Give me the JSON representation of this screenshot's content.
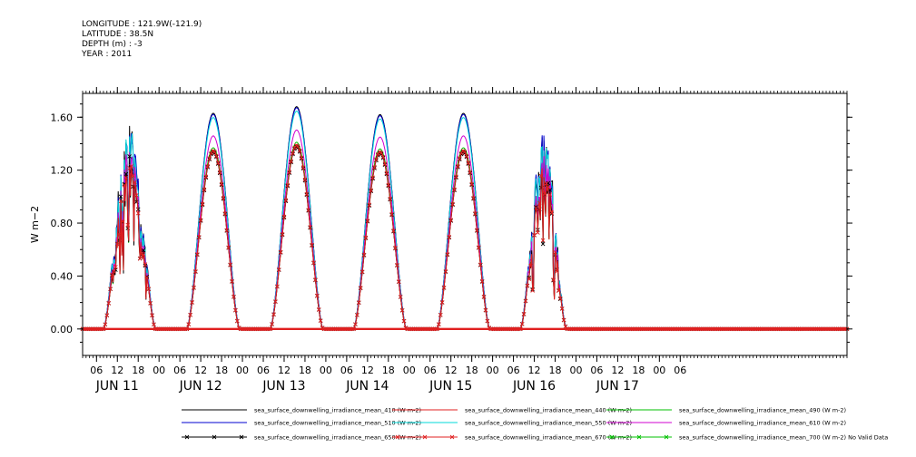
{
  "header": {
    "longitude": "LONGITUDE : 121.9W(-121.9)",
    "latitude": "LATITUDE : 38.5N",
    "depth": "DEPTH (m) : -3",
    "year": "YEAR : 2011"
  },
  "chart_data": {
    "type": "line",
    "title": "",
    "xlabel": "",
    "ylabel": "W m-2",
    "ylim": [
      -0.2,
      1.78
    ],
    "yticks": [
      0.0,
      0.4,
      0.8,
      1.2,
      1.6
    ],
    "ytick_labels": [
      "0.00",
      "0.40",
      "0.80",
      "1.20",
      "1.60"
    ],
    "xlim_hours": [
      2,
      222
    ],
    "x_tick_labels": [
      "06",
      "12",
      "18",
      "00",
      "06",
      "12",
      "18",
      "00",
      "06",
      "12",
      "18",
      "00",
      "06",
      "12",
      "18",
      "00",
      "06",
      "12",
      "18",
      "00",
      "06",
      "12",
      "18",
      "00",
      "06",
      "12",
      "18",
      "00",
      "06"
    ],
    "day_labels": [
      "JUN 11",
      "JUN 12",
      "JUN 13",
      "JUN 14",
      "JUN 15",
      "JUN 16",
      "JUN 17"
    ],
    "grid": false,
    "legend_position": "bottom",
    "peaks_410": [
      1.55,
      1.63,
      1.68,
      1.62,
      1.63,
      1.45
    ],
    "series": [
      {
        "name": "sea_surface_downwelling_irradiance_mean_410 (W m-2)",
        "color": "#000000",
        "scale": 1.0,
        "marker": false
      },
      {
        "name": "sea_surface_downwelling_irradiance_mean_440 (W m-2)",
        "color": "#e02020",
        "scale": 0.83,
        "marker": false
      },
      {
        "name": "sea_surface_downwelling_irradiance_mean_490 (W m-2)",
        "color": "#00c000",
        "scale": 0.84,
        "marker": false
      },
      {
        "name": "sea_surface_downwelling_irradiance_mean_510 (W m-2)",
        "color": "#0000d0",
        "scale": 0.995,
        "marker": false
      },
      {
        "name": "sea_surface_downwelling_irradiance_mean_550 (W m-2)",
        "color": "#00d8d8",
        "scale": 0.98,
        "marker": false
      },
      {
        "name": "sea_surface_downwelling_irradiance_mean_610 (W m-2)",
        "color": "#d000d0",
        "scale": 0.895,
        "marker": false
      },
      {
        "name": "sea_surface_downwelling_irradiance_mean_650 (W m-2)",
        "color": "#000000",
        "scale": 0.82,
        "marker": true
      },
      {
        "name": "sea_surface_downwelling_irradiance_mean_670 (W m-2)",
        "color": "#e02020",
        "scale": 0.825,
        "marker": true
      },
      {
        "name": "sea_surface_downwelling_irradiance_mean_700 (W m-2) No Valid Data",
        "color": "#00c000",
        "scale": 0.0,
        "marker": true
      }
    ]
  }
}
